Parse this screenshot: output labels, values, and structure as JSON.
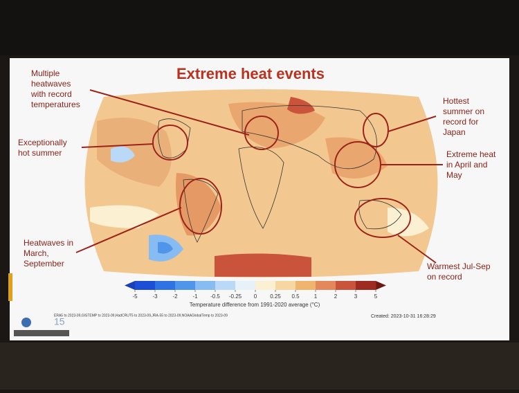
{
  "title": "Extreme heat events",
  "annotations": [
    {
      "lines": [
        "Multiple",
        "heatwaves",
        "with record",
        "temperatures"
      ]
    },
    {
      "lines": [
        "Exceptionally",
        "hot summer"
      ]
    },
    {
      "lines": [
        "Heatwaves in",
        "March,",
        "September"
      ]
    },
    {
      "lines": [
        "Hottest",
        "summer on",
        "record for",
        "Japan"
      ]
    },
    {
      "lines": [
        "Extreme heat",
        "in April and",
        "May"
      ]
    },
    {
      "lines": [
        "Warmest Jul-Sep",
        "on record"
      ]
    }
  ],
  "legend": {
    "ticks": [
      -5,
      -3,
      -2,
      -1,
      -0.5,
      -0.25,
      0,
      0.25,
      0.5,
      1,
      2,
      3,
      5
    ],
    "colors": [
      "#1d4fd6",
      "#2f72e3",
      "#4f95ea",
      "#86bcf1",
      "#b9d9f6",
      "#e6f1f8",
      "#fbf0d2",
      "#f6d7a1",
      "#efb46e",
      "#e2885a",
      "#c9533b",
      "#9e2a22"
    ],
    "under_color": "#1a3fb8",
    "over_color": "#6e1814",
    "caption": "Temperature difference from 1991-2020 average (°C)"
  },
  "footer": {
    "sources": "ERA5 to 2023-09,GISTEMP to 2023-09,HadCRUT5 to 2023-09,JRA-55 to 2023-09,NOAAGlobalTemp to 2023-09",
    "created": "Created: 2023-10-31 16:28:29"
  }
}
